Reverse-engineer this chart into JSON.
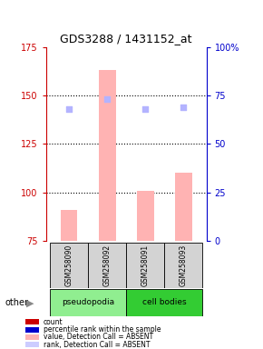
{
  "title": "GDS3288 / 1431152_at",
  "samples": [
    "GSM258090",
    "GSM258092",
    "GSM258091",
    "GSM258093"
  ],
  "bar_values": [
    91,
    163,
    101,
    110
  ],
  "rank_dots": [
    68,
    73,
    68,
    69
  ],
  "ylim_left": [
    75,
    175
  ],
  "ylim_right": [
    0,
    100
  ],
  "yticks_left": [
    75,
    100,
    125,
    150,
    175
  ],
  "yticks_right": [
    0,
    25,
    50,
    75,
    100
  ],
  "ytick_labels_right": [
    "0",
    "25",
    "50",
    "75",
    "100%"
  ],
  "bar_color": "#ffb3b3",
  "dot_color": "#b3b3ff",
  "group_colors": {
    "pseudopodia": "#90ee90",
    "cell bodies": "#33cc33"
  },
  "legend_items": [
    {
      "color": "#cc0000",
      "label": "count"
    },
    {
      "color": "#0000cc",
      "label": "percentile rank within the sample"
    },
    {
      "color": "#ffb3b3",
      "label": "value, Detection Call = ABSENT"
    },
    {
      "color": "#ccccff",
      "label": "rank, Detection Call = ABSENT"
    }
  ],
  "other_label": "other",
  "axis_left_color": "#cc0000",
  "axis_right_color": "#0000cc",
  "grid_lines": [
    100,
    125,
    150
  ]
}
